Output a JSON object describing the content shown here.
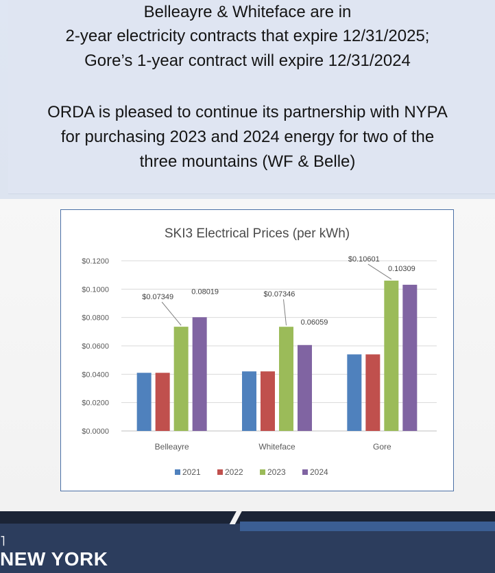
{
  "header": {
    "lines": [
      "Belleayre & Whiteface are in",
      "2-year electricity contracts that expire 12/31/2025;",
      "Gore’s 1-year contract will expire 12/31/2024",
      "ORDA is pleased to continue its partnership with NYPA",
      "for purchasing 2023 and 2024 energy for two of the",
      "three mountains (WF & Belle)"
    ]
  },
  "chart_data": {
    "type": "bar",
    "title": "SKI3 Electrical Prices (per kWh)",
    "categories": [
      "Belleayre",
      "Whiteface",
      "Gore"
    ],
    "series": [
      {
        "name": "2021",
        "color": "#4f81bd",
        "values": [
          0.041,
          0.042,
          0.054
        ]
      },
      {
        "name": "2022",
        "color": "#c0504d",
        "values": [
          0.041,
          0.042,
          0.054
        ]
      },
      {
        "name": "2023",
        "color": "#9bbb59",
        "values": [
          0.07349,
          0.07346,
          0.10601
        ]
      },
      {
        "name": "2024",
        "color": "#8064a2",
        "values": [
          0.08019,
          0.06059,
          0.10309
        ]
      }
    ],
    "ylim": [
      0,
      0.12
    ],
    "yticks": [
      "$0.0000",
      "$0.0200",
      "$0.0400",
      "$0.0600",
      "$0.0800",
      "$0.1000",
      "$0.1200"
    ],
    "grid": true,
    "legend": "bottom",
    "annotations": [
      {
        "text": "$0.07349",
        "category": "Belleayre",
        "series": "2023"
      },
      {
        "text": "0.08019",
        "category": "Belleayre",
        "series": "2024"
      },
      {
        "text": "$0.07346",
        "category": "Whiteface",
        "series": "2023"
      },
      {
        "text": "0.06059",
        "category": "Whiteface",
        "series": "2024"
      },
      {
        "text": "$0.10601",
        "category": "Gore",
        "series": "2023"
      },
      {
        "text": "0.10309",
        "category": "Gore",
        "series": "2024"
      }
    ]
  },
  "footer": {
    "text": "NEW YORK"
  }
}
